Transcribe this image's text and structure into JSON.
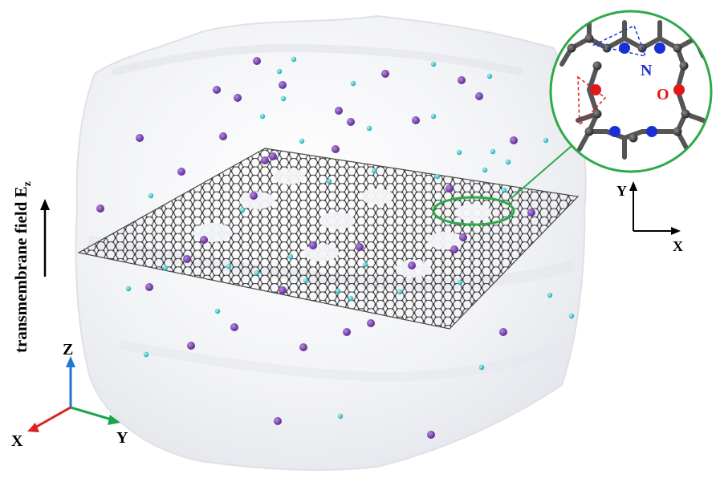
{
  "side_label": {
    "text": "transmembrane field E",
    "subscript": "z"
  },
  "axes_3d": {
    "x_label": "X",
    "y_label": "Y",
    "z_label": "Z",
    "colors": {
      "x": "#e02020",
      "y": "#1aa34a",
      "z": "#1f78d1"
    }
  },
  "axes_2d": {
    "x_label": "X",
    "y_label": "Y"
  },
  "inset": {
    "n_label": "N",
    "o_label": "O",
    "colors": {
      "n": "#1a2fd6",
      "o": "#e01818",
      "carbon": "#555555",
      "circle": "#2eaa4a"
    }
  },
  "colors": {
    "water_box": "#f3f4f7",
    "sheet_atom": "#3a3a3a",
    "ion_purple": "#7b3fb5",
    "ion_cyan": "#2ecfd6",
    "pore_highlight": "#2eaa4a"
  }
}
